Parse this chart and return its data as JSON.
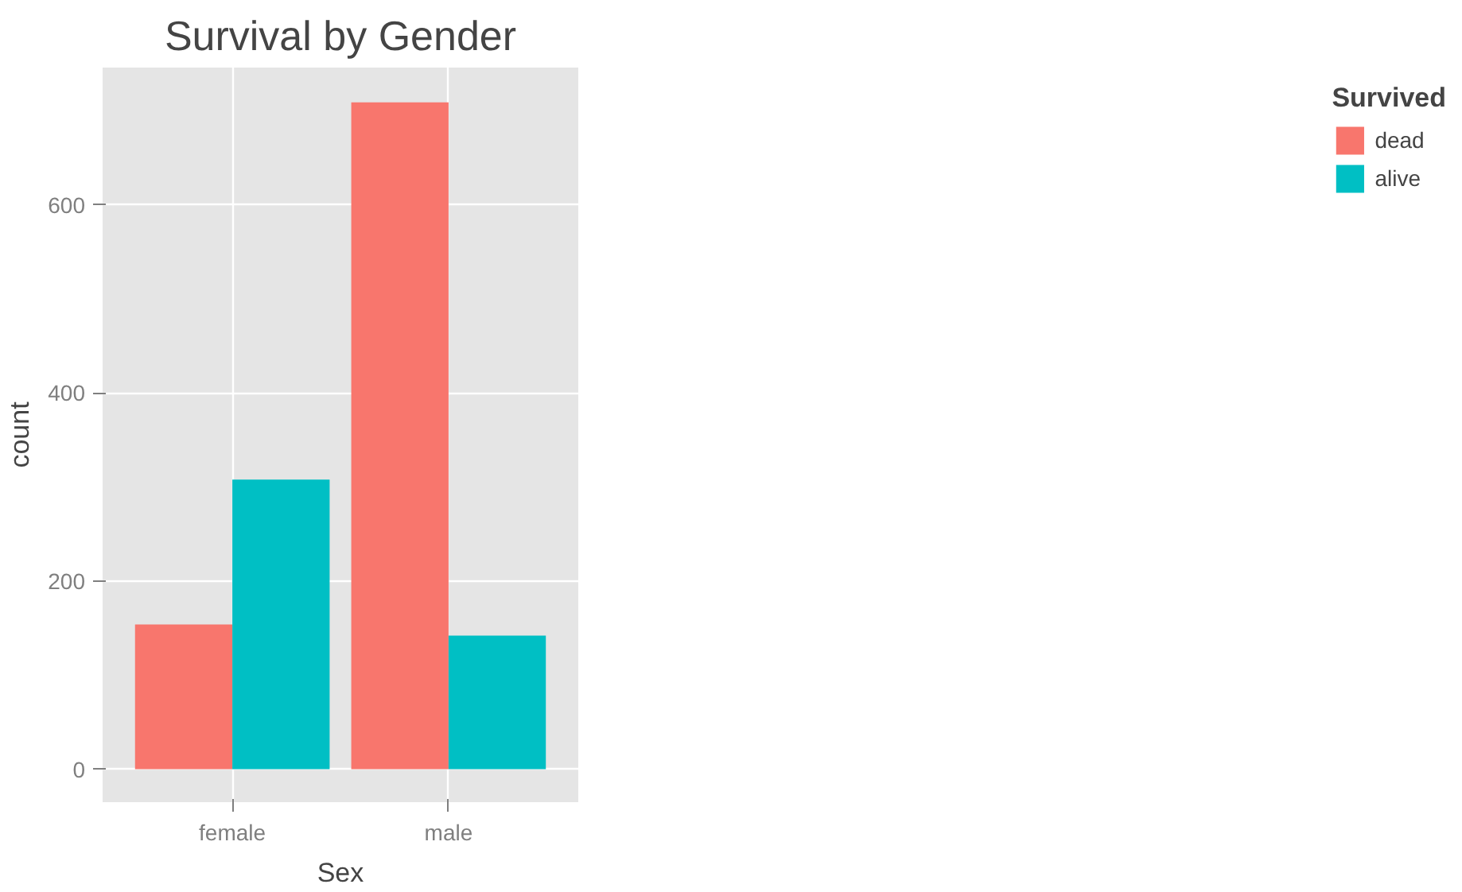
{
  "chart_data": {
    "type": "bar",
    "title": "Survival by Gender",
    "xlabel": "Sex",
    "ylabel": "count",
    "legend_title": "Survived",
    "categories": [
      "female",
      "male"
    ],
    "series": [
      {
        "name": "dead",
        "color": "#f8766d",
        "values": [
          154,
          709
        ]
      },
      {
        "name": "alive",
        "color": "#00bfc4",
        "values": [
          308,
          142
        ]
      }
    ],
    "ylim": [
      -35,
      746
    ],
    "yticks": [
      0,
      200,
      400,
      600
    ],
    "grid": true,
    "legend": "right"
  }
}
